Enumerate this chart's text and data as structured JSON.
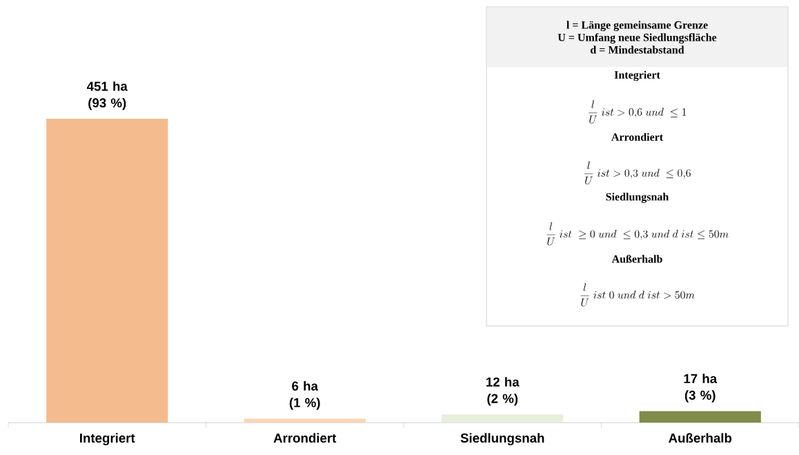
{
  "chart_data": {
    "type": "bar",
    "categories": [
      "Integriert",
      "Arrondiert",
      "Siedlungsnah",
      "Außerhalb"
    ],
    "values": [
      451,
      6,
      12,
      17
    ],
    "colors": [
      "#f4bc8e",
      "#fad7b6",
      "#e8eedc",
      "#7f8c4a"
    ],
    "value_labels": [
      "451 ha (93 %)",
      "6 ha (1 %)",
      "12 ha (2 %)",
      "17 ha (3 %)"
    ],
    "annotations": [
      "l = Länge gemeinsame Grenze",
      "U = Umfang neue Siedlungsfläche",
      "d = Mindestabstand",
      "Integriert",
      "\\frac{l}{U}\\ ist > 0{,}6\\ und\\ \\le 1",
      "Arrondiert",
      "\\frac{l}{U}\\ ist > 0{,}3\\ und\\ \\le 0{,}6",
      "Siedlungsnah",
      "\\frac{l}{U}\\ ist\\ \\ge 0\\ und\\ \\le 0{,}3\\ und\\ d\\ ist \\le 50m",
      "Außerhalb",
      "\\frac{l}{U}\\ ist\\ 0\\ und\\ d\\ ist > 50m"
    ]
  }
}
